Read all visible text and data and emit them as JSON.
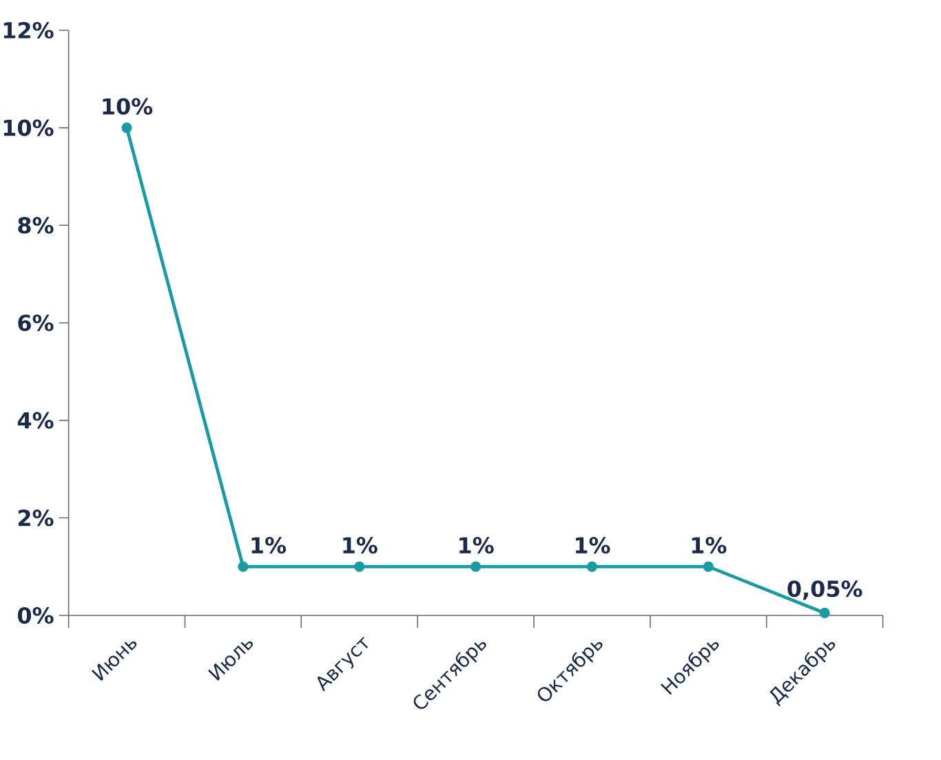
{
  "chart_data": {
    "type": "line",
    "categories": [
      "Июнь",
      "Июль",
      "Август",
      "Сентябрь",
      "Октябрь",
      "Ноябрь",
      "Декабрь"
    ],
    "values": [
      10,
      1,
      1,
      1,
      1,
      1,
      0.05
    ],
    "value_labels": [
      "10%",
      "1%",
      "1%",
      "1%",
      "1%",
      "1%",
      "0,05%"
    ],
    "color": "#1a9ba1",
    "ylim": [
      0,
      12
    ],
    "yticks": [
      {
        "value": 0,
        "label": "0%"
      },
      {
        "value": 2,
        "label": "2%"
      },
      {
        "value": 4,
        "label": "4%"
      },
      {
        "value": 6,
        "label": "6%"
      },
      {
        "value": 8,
        "label": "8%"
      },
      {
        "value": 10,
        "label": "10%"
      },
      {
        "value": 12,
        "label": "12%"
      }
    ],
    "marker": "circle",
    "line_style": "solid"
  }
}
